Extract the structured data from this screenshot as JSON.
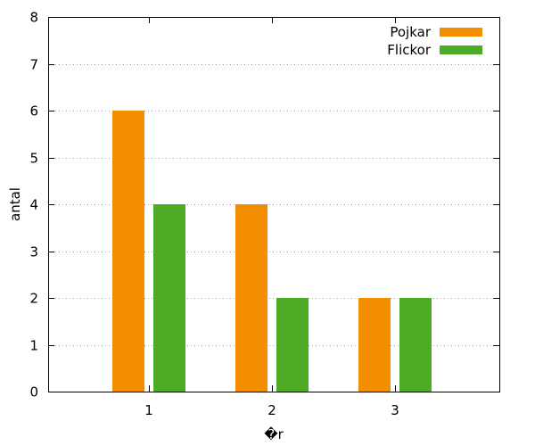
{
  "chart_data": {
    "type": "bar",
    "title": "",
    "xlabel": "�r",
    "ylabel": "antal",
    "categories": [
      "1",
      "2",
      "3"
    ],
    "series": [
      {
        "name": "Pojkar",
        "values": [
          6,
          4,
          2
        ],
        "color": "#f28e00"
      },
      {
        "name": "Flickor",
        "values": [
          4,
          2,
          2
        ],
        "color": "#4dab25"
      }
    ],
    "ylim": [
      0,
      8
    ],
    "yticks": [
      "0",
      "1",
      "2",
      "3",
      "4",
      "5",
      "6",
      "7",
      "8"
    ],
    "grid": true,
    "legend_position": "top-right"
  }
}
